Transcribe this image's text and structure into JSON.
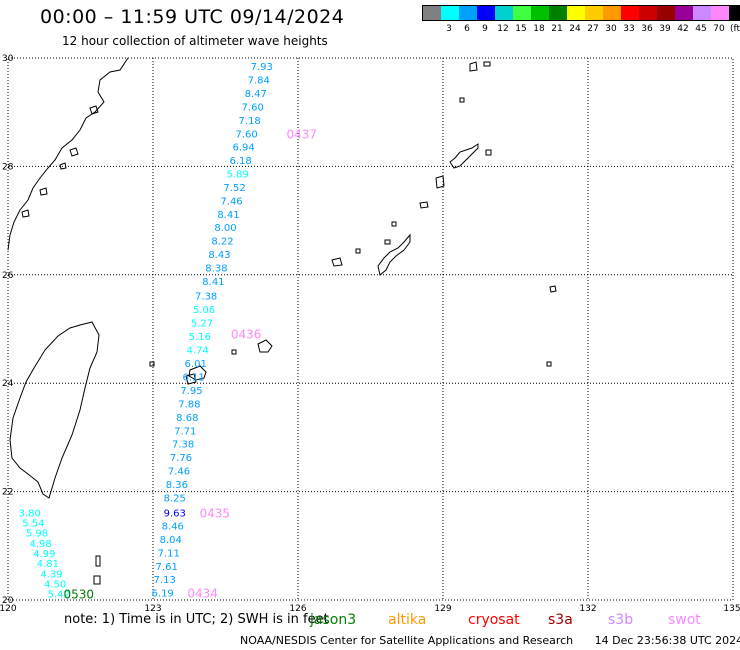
{
  "header": {
    "title": "00:00 – 11:59 UTC 09/14/2024",
    "subtitle": "12 hour collection of altimeter wave heights"
  },
  "legend": {
    "unit": "(ft)",
    "colors": [
      "#808080",
      "#00ffff",
      "#00a0ff",
      "#0000ff",
      "#00d0d0",
      "#40ff40",
      "#00c000",
      "#008000",
      "#ffff00",
      "#ffcc00",
      "#ff9900",
      "#ff0000",
      "#cc0000",
      "#990000",
      "#990099",
      "#cc88ff",
      "#ff88ff",
      "#000000"
    ],
    "labels": [
      "",
      "3",
      "6",
      "9",
      "12",
      "15",
      "18",
      "21",
      "24",
      "27",
      "30",
      "33",
      "36",
      "39",
      "42",
      "45",
      "70"
    ]
  },
  "map": {
    "lon_ticks": [
      "120",
      "123",
      "126",
      "129",
      "132",
      "135"
    ],
    "lat_ticks": [
      "30",
      "28",
      "26",
      "24",
      "22",
      "20"
    ],
    "lon_range": [
      120,
      135
    ],
    "lat_range": [
      20,
      30
    ],
    "tracks": [
      {
        "time_label": "0437",
        "time_color": "#ff88ff",
        "label_lat": 28.59,
        "values": [
          "7.93",
          "7.84",
          "8.47",
          "7.60",
          "7.18",
          "7.60",
          "6.94",
          "6.18",
          "5.89",
          "7.52",
          "7.46",
          "8.41",
          "8.00",
          "8.22",
          "8.43",
          "8.38",
          "8.41"
        ],
        "lon_start": 125.25,
        "lon_end": 124.25,
        "lat_start": 29.83,
        "lat_end": 25.87
      },
      {
        "time_label": "0436",
        "time_color": "#ff88ff",
        "label_lat": 24.9,
        "values": [
          "7.38",
          "5.06",
          "5.27",
          "5.16",
          "4.74",
          "6.01",
          "6.11",
          "7.95",
          "7.88",
          "8.68",
          "7.71",
          "7.38",
          "7.76",
          "7.46",
          "8.36",
          "8.25"
        ],
        "lon_start": 124.1,
        "lon_end": 123.45,
        "lat_start": 25.6,
        "lat_end": 21.87
      },
      {
        "time_label": "0435",
        "time_color": "#ff88ff",
        "label_lat": 21.6,
        "values": [
          "9.63",
          "8.46",
          "8.04",
          "7.11",
          "7.61",
          "7.13",
          "6.19"
        ],
        "lon_start": 123.45,
        "lon_end": 123.2,
        "lat_start": 21.6,
        "lat_end": 20.12
      },
      {
        "time_label": "0434",
        "time_color": "#ff88ff",
        "label_lat": 20.12,
        "values": [],
        "lon_start": 123.2,
        "lon_end": 123.2,
        "lat_start": 20.12,
        "lat_end": 20.12
      },
      {
        "time_label": "0530",
        "time_color": "#008000",
        "label_lat": 20.1,
        "values": [
          "3.80",
          "5.54",
          "5.98",
          "4.98",
          "4.99",
          "4.81",
          "4.39",
          "4.50",
          "5.42"
        ],
        "lon_start": 120.45,
        "lon_end": 121.05,
        "lat_start": 21.6,
        "lat_end": 20.1
      }
    ]
  },
  "note": "note: 1) Time is in UTC; 2) SWH is in feet",
  "satellites": [
    {
      "name": "jason3",
      "color": "#008000"
    },
    {
      "name": "altika",
      "color": "#ff9900"
    },
    {
      "name": "cryosat",
      "color": "#ff0000"
    },
    {
      "name": "s3a",
      "color": "#990000"
    },
    {
      "name": "s3b",
      "color": "#cc88ff"
    },
    {
      "name": "swot",
      "color": "#ff88ff"
    }
  ],
  "footer": {
    "source": "NOAA/NESDIS Center for Satellite Applications and Research",
    "timestamp": "14 Dec 23:56:38 UTC 2024"
  }
}
